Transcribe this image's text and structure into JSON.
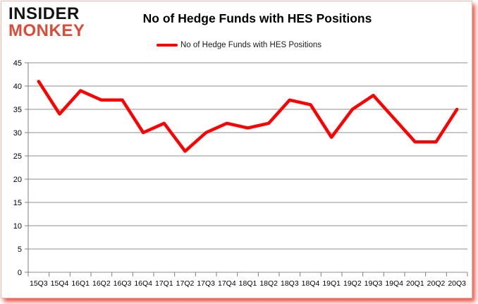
{
  "brand": {
    "line1": "INSIDER",
    "line2": "MONKEY",
    "line1_color": "#141414",
    "line2_color": "#dc4b39"
  },
  "header": {
    "title": "No of Hedge Funds with HES Positions"
  },
  "legend": {
    "label": "No of Hedge Funds with HES Positions",
    "swatch_color": "#ff0000"
  },
  "chart_data": {
    "type": "line",
    "title": "No of Hedge Funds with HES Positions",
    "categories": [
      "15Q3",
      "15Q4",
      "16Q1",
      "16Q2",
      "16Q3",
      "16Q4",
      "17Q1",
      "17Q2",
      "17Q3",
      "17Q4",
      "18Q1",
      "18Q2",
      "18Q3",
      "18Q4",
      "19Q1",
      "19Q2",
      "19Q3",
      "19Q4",
      "20Q1",
      "20Q2",
      "20Q3"
    ],
    "values": [
      41,
      34,
      39,
      37,
      37,
      30,
      32,
      26,
      30,
      32,
      31,
      32,
      37,
      36,
      29,
      35,
      38,
      33,
      28,
      28,
      35
    ],
    "series_name": "No of Hedge Funds with HES Positions",
    "xlabel": "",
    "ylabel": "",
    "ylim": [
      0,
      45
    ],
    "ytick_step": 5,
    "yticks": [
      45,
      40,
      35,
      30,
      25,
      20,
      15,
      10,
      5,
      0
    ],
    "grid": true,
    "legend_position": "top-center",
    "line_color": "#ff0000",
    "grid_color": "#8f8f8f",
    "axis_color": "#7f7f7f"
  }
}
